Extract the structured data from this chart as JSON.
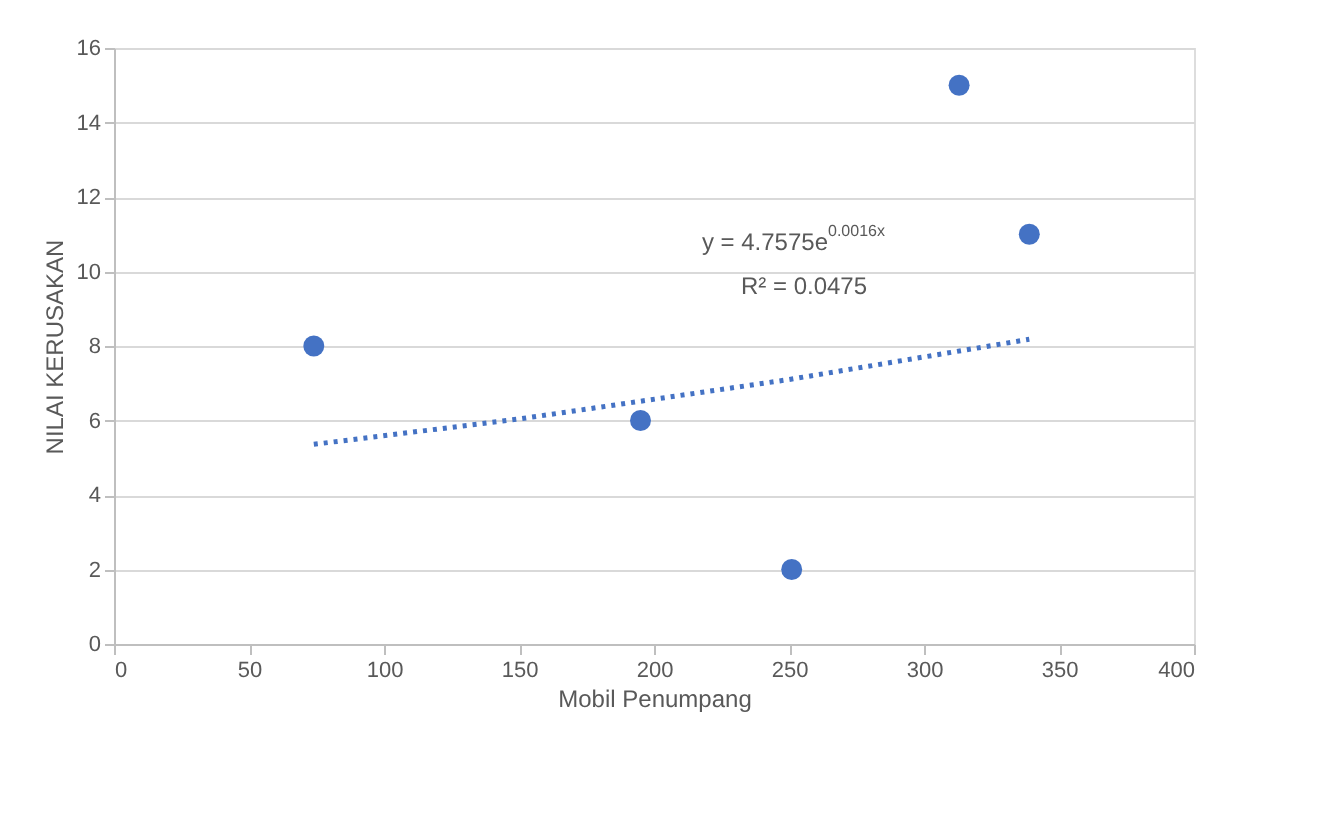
{
  "chart_data": {
    "type": "scatter",
    "xlabel": "Mobil Penumpang",
    "ylabel": "NILAI KERUSAKAN",
    "x": [
      74,
      195,
      251,
      313,
      339
    ],
    "series": [
      {
        "color": "#4472c4",
        "marker": "circle",
        "values": [
          8,
          6,
          2,
          15,
          11
        ]
      },
      {
        "type": "line",
        "color": "#4472c4",
        "line_style": "dotted",
        "x": [
          74,
          150,
          250,
          339
        ],
        "values": [
          5.36,
          6.04,
          7.1,
          8.18
        ]
      }
    ],
    "xlim": [
      0,
      400
    ],
    "xticks": [
      0,
      50,
      100,
      150,
      200,
      250,
      300,
      350,
      400
    ],
    "ylim": [
      0,
      16
    ],
    "yticks": [
      0,
      2,
      4,
      6,
      8,
      10,
      12,
      14,
      16
    ],
    "grid": "y",
    "annotations": [
      "y = 4.7575e$^{0.0016x}$",
      "R² = 0.0475"
    ]
  }
}
